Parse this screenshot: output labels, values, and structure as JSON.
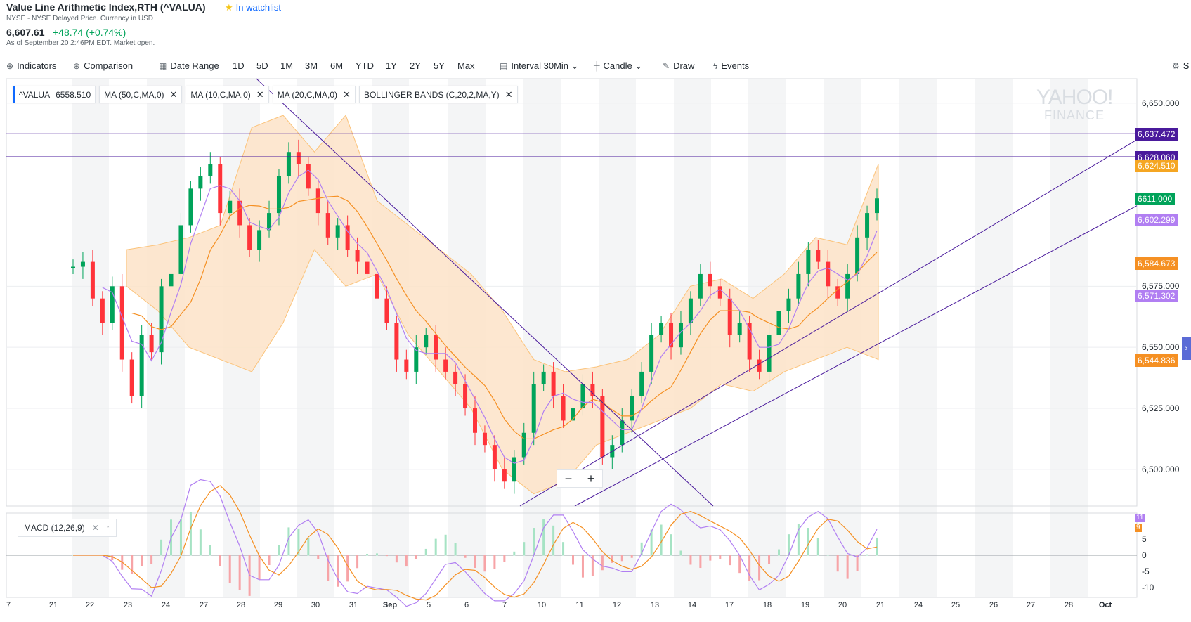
{
  "header": {
    "title": "Value Line Arithmetic Index,RTH (^VALUA)",
    "watchlist": "In watchlist",
    "exchange": "NYSE - NYSE Delayed Price. Currency in USD",
    "price": "6,607.61",
    "change": "+48.74 (+0.74%)",
    "as_of": "As of September 20 2:46PM EDT. Market open."
  },
  "toolbar": {
    "indicators": "Indicators",
    "comparison": "Comparison",
    "date_range": "Date Range",
    "ranges": [
      "1D",
      "5D",
      "1M",
      "3M",
      "6M",
      "YTD",
      "1Y",
      "2Y",
      "5Y",
      "Max"
    ],
    "interval": "Interval",
    "interval_value": "30Min",
    "candle": "Candle",
    "draw": "Draw",
    "events": "Events",
    "settings": "S"
  },
  "legend": {
    "ticker": "^VALUA",
    "ticker_value": "6558.510",
    "chips": [
      "MA (50,C,MA,0)",
      "MA (10,C,MA,0)",
      "MA (20,C,MA,0)",
      "BOLLINGER BANDS (C,20,2,MA,Y)"
    ]
  },
  "macd": {
    "label": "MACD (12,26,9)"
  },
  "watermark": {
    "line1": "YAHOO!",
    "line2": "FINANCE"
  },
  "price_axis": [
    "6,650.000",
    "6,575.000",
    "6,550.000",
    "6,525.000",
    "6,500.000"
  ],
  "price_axis_values": [
    6650,
    6575,
    6550,
    6525,
    6500
  ],
  "price_tags": [
    {
      "label": "6,637.472",
      "value": 6637.472,
      "color": "#4a1a9c"
    },
    {
      "label": "6,628.060",
      "value": 6628.06,
      "color": "#4a1a9c"
    },
    {
      "label": "6,624.510",
      "value": 6624.51,
      "color": "#f5a623"
    },
    {
      "label": "6611.000",
      "value": 6611.0,
      "color": "#00a35a"
    },
    {
      "label": "6,602.299",
      "value": 6602.299,
      "color": "#b17ff2"
    },
    {
      "label": "6,584.673",
      "value": 6584.673,
      "color": "#f59023"
    },
    {
      "label": "6,571.302",
      "value": 6571.302,
      "color": "#b17ff2"
    },
    {
      "label": "6,544.836",
      "value": 6544.836,
      "color": "#f59023"
    }
  ],
  "macd_axis": [
    "5",
    "0",
    "-5",
    "-10"
  ],
  "macd_axis_values": [
    5,
    0,
    -5,
    -10
  ],
  "macd_tags": [
    "11",
    "9"
  ],
  "x_axis": [
    "7",
    "21",
    "22",
    "23",
    "24",
    "27",
    "28",
    "29",
    "30",
    "31",
    "Sep",
    "5",
    "6",
    "7",
    "10",
    "11",
    "12",
    "13",
    "14",
    "17",
    "18",
    "19",
    "20",
    "21",
    "24",
    "25",
    "26",
    "27",
    "28",
    "Oct"
  ],
  "colors": {
    "up": "#00a35a",
    "down": "#ff333a",
    "band": "#fde3c8",
    "ma_purple": "#b17ff2",
    "ma_orange": "#f59023",
    "trend": "#4a1a9c"
  },
  "chart_data": {
    "type": "candlestick",
    "title": "Value Line Arithmetic Index,RTH (^VALUA)",
    "interval": "30Min",
    "ylim": [
      6485,
      6660
    ],
    "close_path": [
      6583,
      6585,
      6570,
      6560,
      6575,
      6545,
      6530,
      6555,
      6548,
      6575,
      6580,
      6600,
      6615,
      6620,
      6625,
      6605,
      6610,
      6600,
      6590,
      6598,
      6605,
      6620,
      6630,
      6625,
      6615,
      6605,
      6595,
      6600,
      6590,
      6585,
      6580,
      6570,
      6560,
      6545,
      6540,
      6550,
      6555,
      6545,
      6540,
      6535,
      6525,
      6515,
      6510,
      6500,
      6495,
      6505,
      6515,
      6535,
      6540,
      6530,
      6520,
      6525,
      6535,
      6530,
      6505,
      6510,
      6520,
      6530,
      6540,
      6555,
      6560,
      6550,
      6560,
      6570,
      6580,
      6575,
      6570,
      6555,
      6560,
      6545,
      6540,
      6555,
      6565,
      6570,
      6580,
      6590,
      6585,
      6575,
      6570,
      6580,
      6595,
      6605,
      6611
    ],
    "bollinger_upper": [
      6590,
      6592,
      6595,
      6600,
      6640,
      6645,
      6630,
      6645,
      6610,
      6600,
      6590,
      6580,
      6565,
      6545,
      6540,
      6542,
      6545,
      6555,
      6575,
      6578,
      6570,
      6580,
      6595,
      6592,
      6625
    ],
    "bollinger_lower": [
      6575,
      6565,
      6550,
      6545,
      6540,
      6560,
      6590,
      6575,
      6580,
      6555,
      6540,
      6525,
      6500,
      6490,
      6495,
      6510,
      6515,
      6520,
      6525,
      6535,
      6532,
      6540,
      6545,
      6550,
      6545
    ],
    "macd_range": [
      -13,
      13
    ]
  }
}
